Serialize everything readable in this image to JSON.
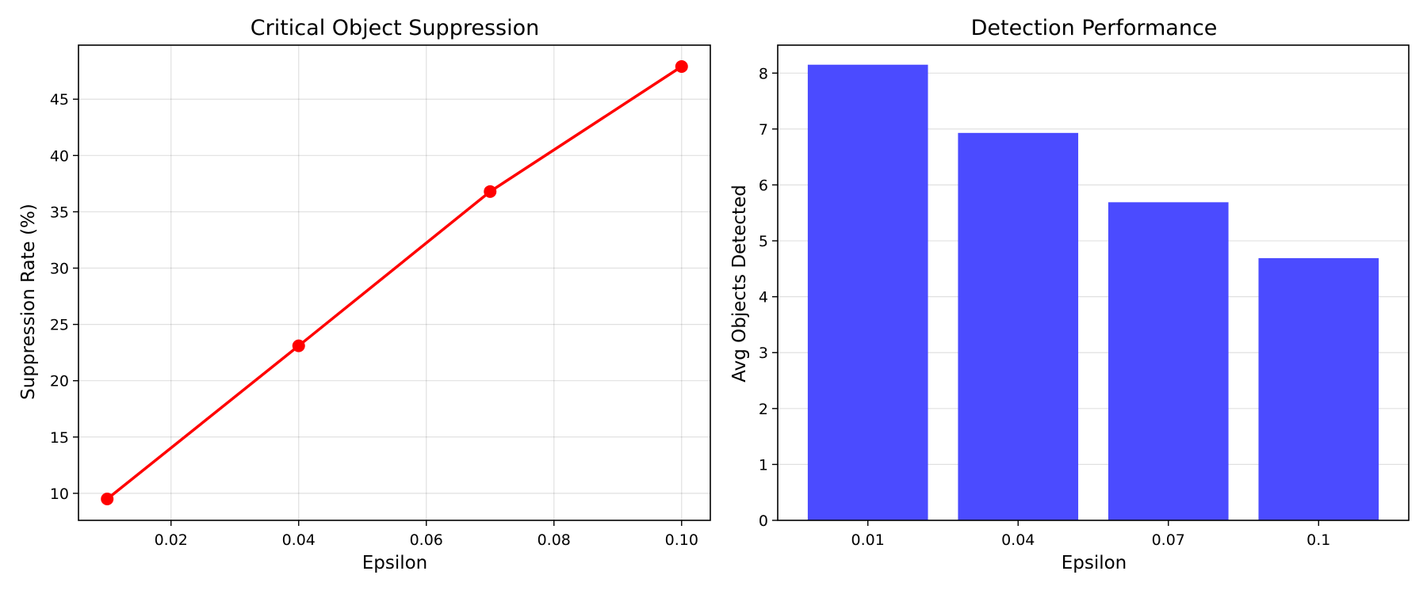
{
  "chart_data": [
    {
      "type": "line",
      "title": "Critical Object Suppression",
      "xlabel": "Epsilon",
      "ylabel": "Suppression Rate (%)",
      "x": [
        0.01,
        0.04,
        0.07,
        0.1
      ],
      "series": [
        {
          "values": [
            9.5,
            23.1,
            36.8,
            47.9
          ],
          "color": "#ff0000"
        }
      ],
      "xlim": [
        0.0055,
        0.1045
      ],
      "ylim": [
        7.6,
        49.8
      ],
      "xticks": [
        0.02,
        0.04,
        0.06,
        0.08,
        0.1
      ],
      "xtick_labels": [
        "0.02",
        "0.04",
        "0.06",
        "0.08",
        "0.10"
      ],
      "yticks": [
        10,
        15,
        20,
        25,
        30,
        35,
        40,
        45
      ],
      "ytick_labels": [
        "10",
        "15",
        "20",
        "25",
        "30",
        "35",
        "40",
        "45"
      ],
      "grid": true,
      "marker": "circle"
    },
    {
      "type": "bar",
      "title": "Detection Performance",
      "xlabel": "Epsilon",
      "ylabel": "Avg Objects Detected",
      "categories": [
        "0.01",
        "0.04",
        "0.07",
        "0.1"
      ],
      "values": [
        8.15,
        6.93,
        5.69,
        4.69
      ],
      "color": "#4b4bff",
      "ylim": [
        0,
        8.5
      ],
      "yticks": [
        0,
        1,
        2,
        3,
        4,
        5,
        6,
        7,
        8
      ],
      "ytick_labels": [
        "0",
        "1",
        "2",
        "3",
        "4",
        "5",
        "6",
        "7",
        "8"
      ],
      "grid": "y"
    }
  ]
}
